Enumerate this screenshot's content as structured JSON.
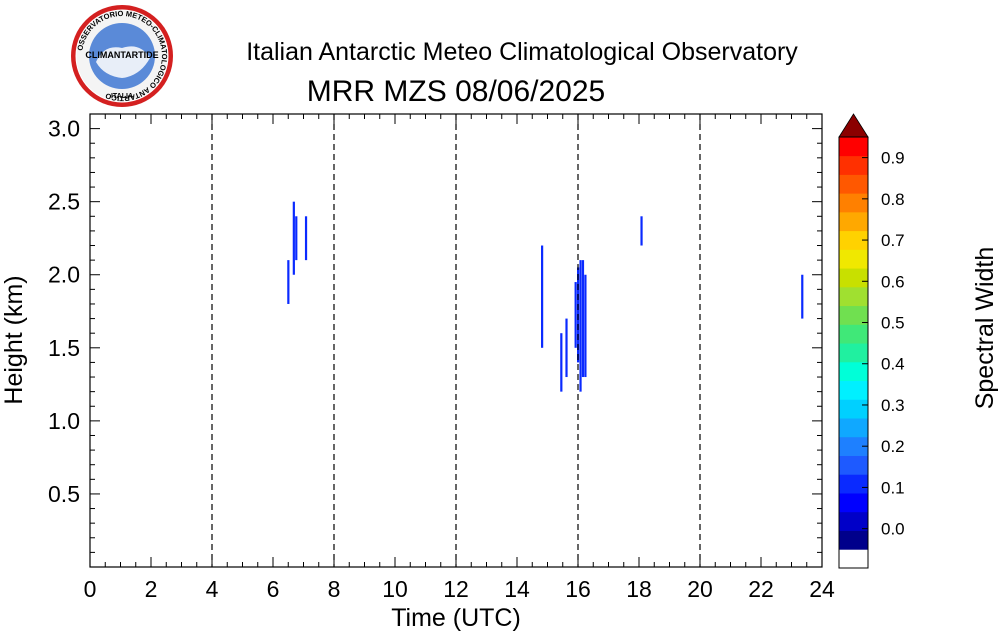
{
  "logo": {
    "ring_text": "OSSERVATORIO METEO-CLIMATOLOGICO ANTARTICO",
    "center_text": "CLIMANTARTIDE",
    "bottom_text": "ITALIA"
  },
  "chart_data": {
    "type": "heatmap",
    "title": "Italian Antarctic Meteo Climatological Observatory",
    "subtitle": "MRR MZS 08/06/2025",
    "xlabel": "Time (UTC)",
    "ylabel": "Height (km)",
    "xlim": [
      0,
      24
    ],
    "ylim": [
      0,
      3.1
    ],
    "x_ticks": [
      "0",
      "2",
      "4",
      "6",
      "8",
      "10",
      "12",
      "14",
      "16",
      "18",
      "20",
      "22",
      "24"
    ],
    "x_tick_values": [
      0,
      2,
      4,
      6,
      8,
      10,
      12,
      14,
      16,
      18,
      20,
      22,
      24
    ],
    "y_ticks": [
      "0.5",
      "1.0",
      "1.5",
      "2.0",
      "2.5",
      "3.0"
    ],
    "y_tick_values": [
      0.5,
      1.0,
      1.5,
      2.0,
      2.5,
      3.0
    ],
    "vertical_dashed_lines": [
      4,
      8,
      12,
      16,
      20
    ],
    "colorbar": {
      "label": "Spectral Width",
      "ticks": [
        "0.0",
        "0.1",
        "0.2",
        "0.3",
        "0.4",
        "0.5",
        "0.6",
        "0.7",
        "0.8",
        "0.9"
      ],
      "tick_values": [
        0.0,
        0.1,
        0.2,
        0.3,
        0.4,
        0.5,
        0.6,
        0.7,
        0.8,
        0.9
      ],
      "range": [
        -0.05,
        0.95
      ],
      "colors": [
        "#00008b",
        "#0000c8",
        "#0000ff",
        "#0a2aff",
        "#1e5aff",
        "#1e80ff",
        "#10a8ff",
        "#00d0ff",
        "#00f0ff",
        "#00ffd8",
        "#20f0a0",
        "#40e878",
        "#70e050",
        "#a0e030",
        "#c8e000",
        "#f0e800",
        "#ffd200",
        "#ffa800",
        "#ff8000",
        "#ff5800",
        "#ff3000",
        "#ff0000"
      ],
      "below_color": "#ffffff",
      "above_color": "#8b0000"
    },
    "cells": [
      {
        "t": 6.5,
        "h0": 1.8,
        "h1": 2.1,
        "v": 0.1
      },
      {
        "t": 6.68,
        "h0": 2.0,
        "h1": 2.5,
        "v": 0.1
      },
      {
        "t": 6.76,
        "h0": 2.1,
        "h1": 2.4,
        "v": 0.12
      },
      {
        "t": 7.08,
        "h0": 2.1,
        "h1": 2.4,
        "v": 0.1
      },
      {
        "t": 14.82,
        "h0": 1.5,
        "h1": 2.2,
        "v": 0.1
      },
      {
        "t": 15.45,
        "h0": 1.2,
        "h1": 1.6,
        "v": 0.1
      },
      {
        "t": 15.62,
        "h0": 1.3,
        "h1": 1.7,
        "v": 0.1
      },
      {
        "t": 15.92,
        "h0": 1.5,
        "h1": 1.95,
        "v": 0.1
      },
      {
        "t": 16.0,
        "h0": 1.4,
        "h1": 2.05,
        "v": 0.12
      },
      {
        "t": 16.08,
        "h0": 1.2,
        "h1": 2.1,
        "v": 0.1
      },
      {
        "t": 16.16,
        "h0": 1.3,
        "h1": 2.1,
        "v": 0.12
      },
      {
        "t": 16.24,
        "h0": 1.3,
        "h1": 2.0,
        "v": 0.1
      },
      {
        "t": 18.08,
        "h0": 2.2,
        "h1": 2.4,
        "v": 0.1
      },
      {
        "t": 23.35,
        "h0": 1.7,
        "h1": 2.0,
        "v": 0.1
      }
    ]
  }
}
